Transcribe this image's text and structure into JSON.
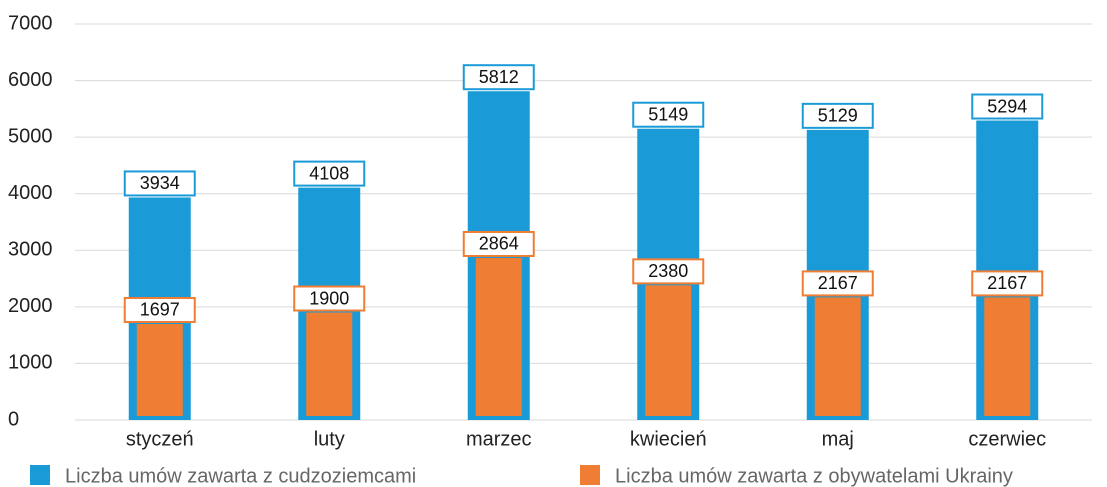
{
  "chart_data": {
    "type": "bar",
    "categories": [
      "styczeń",
      "luty",
      "marzec",
      "kwiecień",
      "maj",
      "czerwiec"
    ],
    "series": [
      {
        "name": "Liczba umów zawarta z cudzoziemcami",
        "color": "#1a9bd7",
        "values": [
          3934,
          4108,
          5812,
          5149,
          5129,
          5294
        ]
      },
      {
        "name": "Liczba umów zawarta z obywatelami Ukrainy",
        "color": "#ef7d34",
        "values": [
          1697,
          1900,
          2864,
          2380,
          2167,
          2167
        ]
      }
    ],
    "ylim": [
      0,
      7000
    ],
    "yticks": [
      0,
      1000,
      2000,
      3000,
      4000,
      5000,
      6000,
      7000
    ],
    "grid": true,
    "legend": "bottom"
  }
}
